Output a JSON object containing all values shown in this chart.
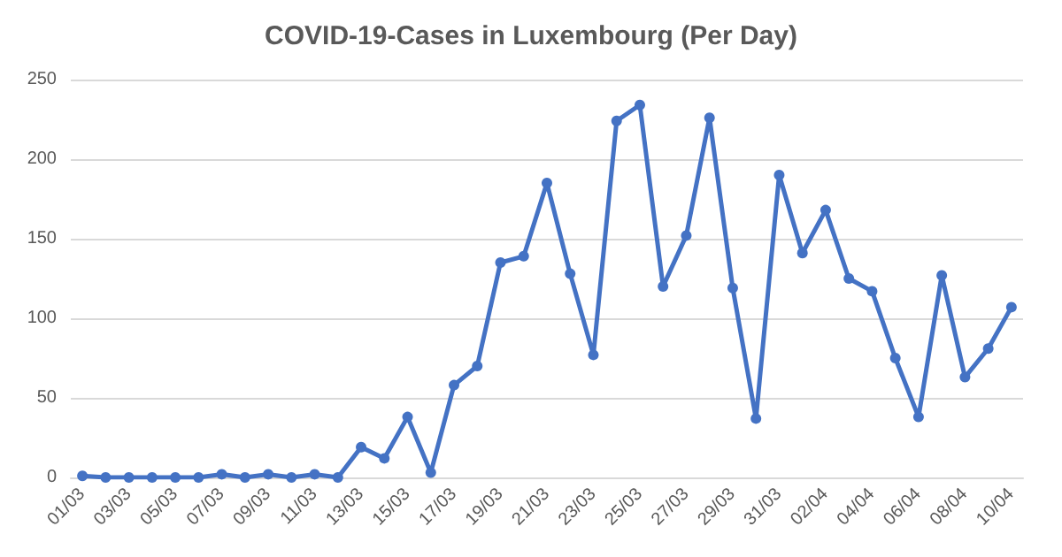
{
  "chart_data": {
    "type": "line",
    "title": "COVID-19-Cases in Luxembourg (Per Day)",
    "categories": [
      "01/03",
      null,
      "03/03",
      null,
      "05/03",
      null,
      "07/03",
      null,
      "09/03",
      null,
      "11/03",
      null,
      "13/03",
      null,
      "15/03",
      null,
      "17/03",
      null,
      "19/03",
      null,
      "21/03",
      null,
      "23/03",
      null,
      "25/03",
      null,
      "27/03",
      null,
      "29/03",
      null,
      "31/03",
      null,
      "02/04",
      null,
      "04/04",
      null,
      "06/04",
      null,
      "08/04",
      null,
      "10/04"
    ],
    "values": [
      1,
      0,
      0,
      0,
      0,
      0,
      2,
      0,
      2,
      0,
      2,
      0,
      19,
      12,
      38,
      3,
      58,
      70,
      135,
      139,
      185,
      128,
      77,
      224,
      234,
      120,
      152,
      226,
      119,
      37,
      190,
      141,
      168,
      125,
      117,
      75,
      38,
      127,
      63,
      81,
      107
    ],
    "color": "#4472c4",
    "ylim": [
      0,
      250
    ],
    "yticks": [
      0,
      50,
      100,
      150,
      200,
      250
    ],
    "grid": "y",
    "marker": "circle",
    "line_style": "solid"
  }
}
